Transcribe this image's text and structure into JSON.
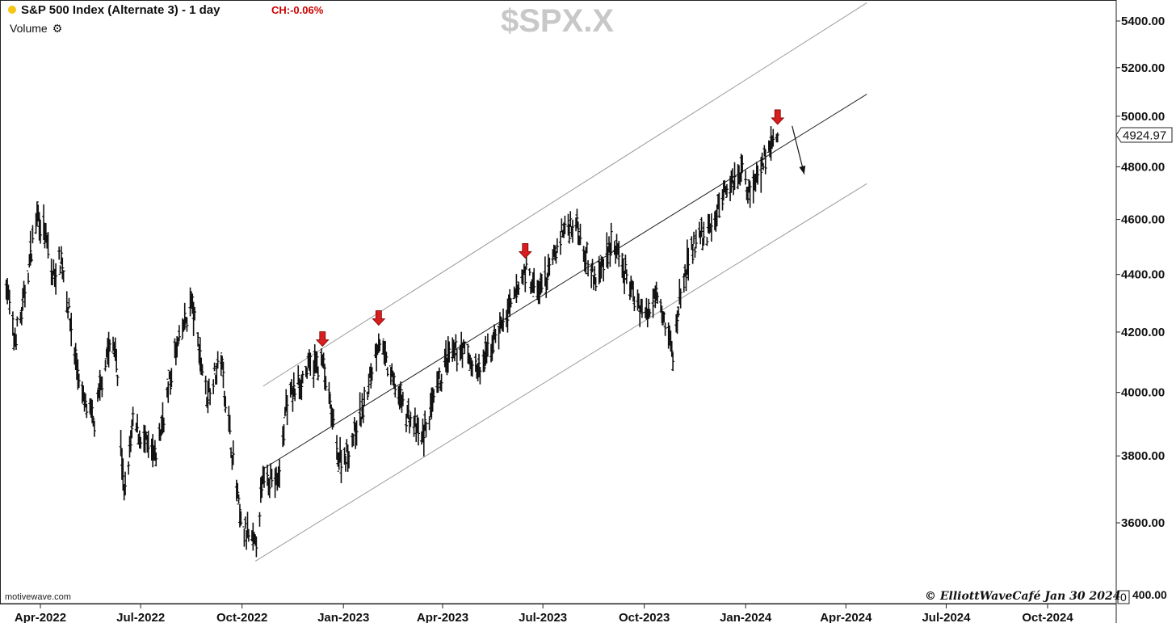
{
  "header": {
    "title": "S&P 500 Index (Alternate 3) - 1 day",
    "change": "CH:-0.06%",
    "indicator": "Volume",
    "symbol_watermark": "$SPX.X",
    "dot_color": "#f5c518",
    "change_color": "#cc0000"
  },
  "footer": {
    "source": "motivewave.com",
    "credit": "© ElliottWaveCafé Jan 30 2024",
    "volume_axis_zero": "0"
  },
  "chart_data": {
    "type": "ohlc",
    "title": "S&P 500 Index (Alternate 3) - 1 day",
    "y_scale": "log",
    "ylim": [
      3490,
      5480
    ],
    "x_range": [
      "2022-03-01",
      "2024-11-01"
    ],
    "y_ticks": [
      "5400.00",
      "5200.00",
      "5000.00",
      "4800.00",
      "4600.00",
      "4400.00",
      "4200.00",
      "4000.00",
      "3800.00",
      "3600.00"
    ],
    "x_ticks": [
      "Apr-2022",
      "Jul-2022",
      "Oct-2022",
      "Jan-2023",
      "Apr-2023",
      "Jul-2023",
      "Oct-2023",
      "Jan-2024",
      "Apr-2024",
      "Jul-2024",
      "Oct-2024"
    ],
    "last_price_label": "4924.97",
    "anchors": [
      [
        "2022-03-01",
        4380
      ],
      [
        "2022-03-08",
        4170
      ],
      [
        "2022-03-15",
        4260
      ],
      [
        "2022-03-29",
        4630
      ],
      [
        "2022-04-05",
        4550
      ],
      [
        "2022-04-12",
        4390
      ],
      [
        "2022-04-20",
        4460
      ],
      [
        "2022-05-02",
        4130
      ],
      [
        "2022-05-10",
        3970
      ],
      [
        "2022-05-20",
        3900
      ],
      [
        "2022-05-31",
        4130
      ],
      [
        "2022-06-08",
        4160
      ],
      [
        "2022-06-16",
        3670
      ],
      [
        "2022-06-24",
        3900
      ],
      [
        "2022-07-14",
        3790
      ],
      [
        "2022-08-01",
        4120
      ],
      [
        "2022-08-16",
        4305
      ],
      [
        "2022-08-30",
        3990
      ],
      [
        "2022-09-12",
        4110
      ],
      [
        "2022-09-30",
        3590
      ],
      [
        "2022-10-13",
        3530
      ],
      [
        "2022-10-21",
        3750
      ],
      [
        "2022-11-03",
        3720
      ],
      [
        "2022-11-10",
        3960
      ],
      [
        "2022-11-30",
        4080
      ],
      [
        "2022-12-13",
        4100
      ],
      [
        "2022-12-28",
        3790
      ],
      [
        "2023-01-05",
        3810
      ],
      [
        "2023-01-20",
        3960
      ],
      [
        "2023-02-02",
        4180
      ],
      [
        "2023-02-10",
        4080
      ],
      [
        "2023-02-24",
        3960
      ],
      [
        "2023-03-13",
        3850
      ],
      [
        "2023-03-24",
        3970
      ],
      [
        "2023-04-04",
        4100
      ],
      [
        "2023-04-18",
        4150
      ],
      [
        "2023-05-04",
        4060
      ],
      [
        "2023-05-19",
        4190
      ],
      [
        "2023-06-02",
        4280
      ],
      [
        "2023-06-15",
        4420
      ],
      [
        "2023-06-26",
        4330
      ],
      [
        "2023-07-06",
        4400
      ],
      [
        "2023-07-19",
        4560
      ],
      [
        "2023-07-31",
        4590
      ],
      [
        "2023-08-18",
        4370
      ],
      [
        "2023-09-01",
        4520
      ],
      [
        "2023-09-21",
        4330
      ],
      [
        "2023-10-04",
        4250
      ],
      [
        "2023-10-12",
        4370
      ],
      [
        "2023-10-27",
        4120
      ],
      [
        "2023-11-03",
        4340
      ],
      [
        "2023-11-14",
        4500
      ],
      [
        "2023-11-30",
        4560
      ],
      [
        "2023-12-14",
        4720
      ],
      [
        "2023-12-28",
        4790
      ],
      [
        "2024-01-05",
        4700
      ],
      [
        "2024-01-12",
        4780
      ],
      [
        "2024-01-19",
        4840
      ],
      [
        "2024-01-30",
        4925
      ]
    ],
    "channel": {
      "upper": [
        [
          "2022-10-20",
          4020
        ],
        [
          "2024-04-20",
          5480
        ]
      ],
      "middle": [
        [
          "2022-10-20",
          3760
        ],
        [
          "2024-04-20",
          5090
        ]
      ],
      "lower": [
        [
          "2022-10-13",
          3490
        ],
        [
          "2024-04-20",
          4735
        ]
      ]
    },
    "arrows": [
      "2022-12-13",
      "2023-02-02",
      "2023-06-15",
      "2024-01-30"
    ],
    "projection_arrow": {
      "from": [
        "2024-01-30",
        4935
      ],
      "to": [
        "2024-02-10",
        4790
      ]
    },
    "colors": {
      "bars": "#111111",
      "arrows": "#d81e1e",
      "channel_outer": "#9a9a9a",
      "channel_middle": "#222222"
    }
  }
}
